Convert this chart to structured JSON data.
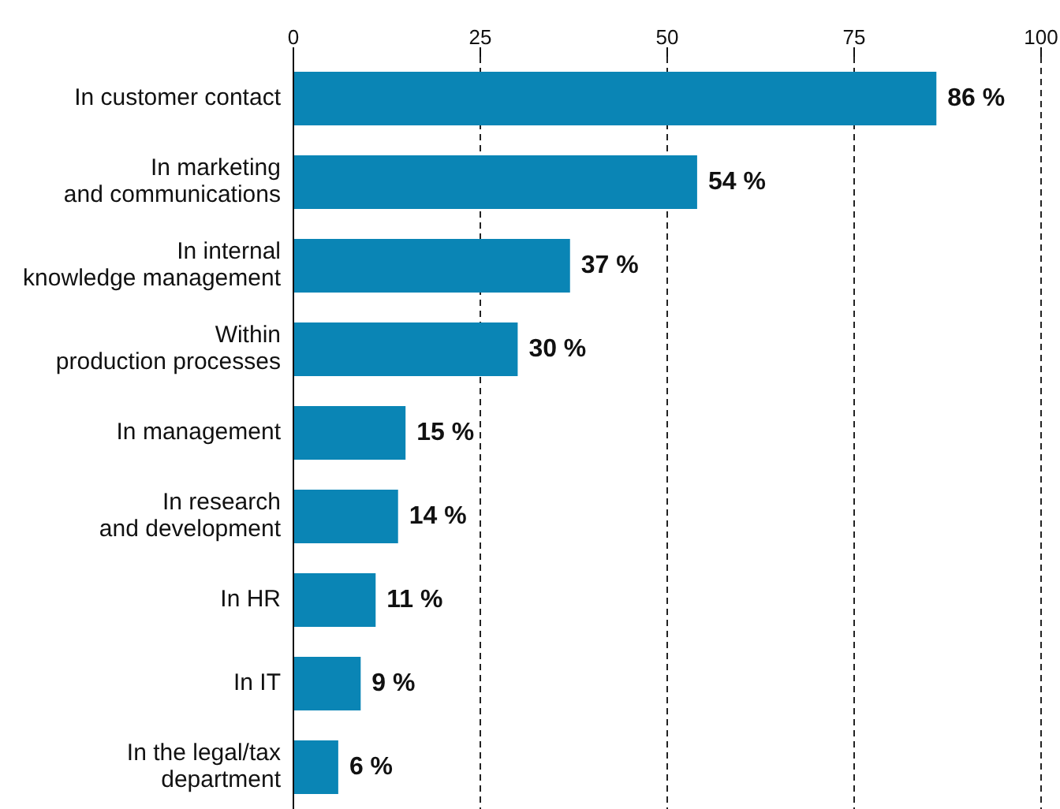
{
  "chart_data": {
    "type": "bar",
    "orientation": "horizontal",
    "categories": [
      "In customer contact",
      "In marketing\nand communications",
      "In internal\nknowledge management",
      "Within\nproduction processes",
      "In management",
      "In research\nand development",
      "In HR",
      "In IT",
      "In the legal/tax\ndepartment"
    ],
    "values": [
      86,
      54,
      37,
      30,
      15,
      14,
      11,
      9,
      6
    ],
    "value_labels": [
      "86 %",
      "54 %",
      "37 %",
      "30 %",
      "15 %",
      "14 %",
      "11 %",
      "9 %",
      "6 %"
    ],
    "color": "#0a85b5",
    "xlim": [
      0,
      100
    ],
    "xticks": [
      0,
      25,
      50,
      75,
      100
    ],
    "grid": "x"
  }
}
